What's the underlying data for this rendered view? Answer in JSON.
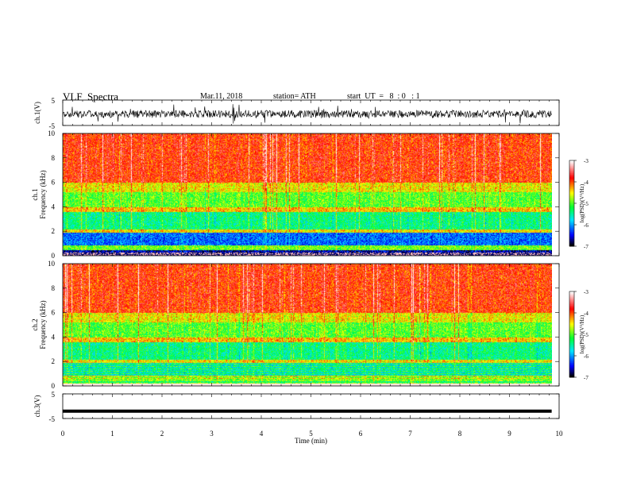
{
  "header": {
    "title": "VLF  Spectra",
    "date": "Mar.11, 2018",
    "station": "station= ATH",
    "start_time": "start  UT  =   8  : 0   : 1"
  },
  "chart_data": [
    {
      "type": "line",
      "panel": "ch1-waveform",
      "ylabel": "ch.1(V)",
      "yticks": [
        "5",
        "-5"
      ],
      "ylim": [
        -5,
        5
      ],
      "xlim": [
        0,
        10
      ],
      "series": [
        {
          "color": "#000000",
          "mean": -0.5,
          "amplitude": 1.5,
          "x_end": 9.85
        }
      ]
    },
    {
      "type": "heatmap",
      "panel": "ch1-spectrogram",
      "ylabel_line1": "ch.1",
      "ylabel_line2": "Frequency (kHz)",
      "yticks": [
        "10",
        "8",
        "6",
        "4",
        "2",
        "0"
      ],
      "ylim": [
        0,
        10
      ],
      "xlim": [
        0,
        10
      ],
      "x_end": 9.85,
      "colorbar": {
        "label": "log(PSD)(V²/Hz)",
        "ticks": [
          "-3",
          "-4",
          "-5",
          "-6",
          "-7"
        ],
        "range": [
          -7,
          -3
        ]
      }
    },
    {
      "type": "heatmap",
      "panel": "ch2-spectrogram",
      "ylabel_line1": "ch.2",
      "ylabel_line2": "Frequency (kHz)",
      "yticks": [
        "10",
        "8",
        "6",
        "4",
        "2",
        "0"
      ],
      "ylim": [
        0,
        10
      ],
      "xlim": [
        0,
        10
      ],
      "x_end": 9.85,
      "colorbar": {
        "label": "log(PSD)(V²/Hz)",
        "ticks": [
          "-3",
          "-4",
          "-5",
          "-6",
          "-7"
        ],
        "range": [
          -7,
          -3
        ]
      }
    },
    {
      "type": "line",
      "panel": "ch3-waveform",
      "ylabel": "ch.3(V)",
      "yticks": [
        "5",
        "-5"
      ],
      "ylim": [
        -5,
        5
      ],
      "xlim": [
        0,
        10
      ],
      "xlabel": "Time  (min)",
      "xticks": [
        "0",
        "1",
        "2",
        "3",
        "4",
        "5",
        "6",
        "7",
        "8",
        "9",
        "10"
      ],
      "series": [
        {
          "color": "#000000",
          "value": -2.0,
          "x_end": 9.85
        }
      ]
    }
  ],
  "colors": {
    "axes": "#000000",
    "colormap": [
      "#000000",
      "#0000ff",
      "#00e5ff",
      "#00ff33",
      "#ffff00",
      "#ff0000",
      "#ffffff"
    ]
  }
}
